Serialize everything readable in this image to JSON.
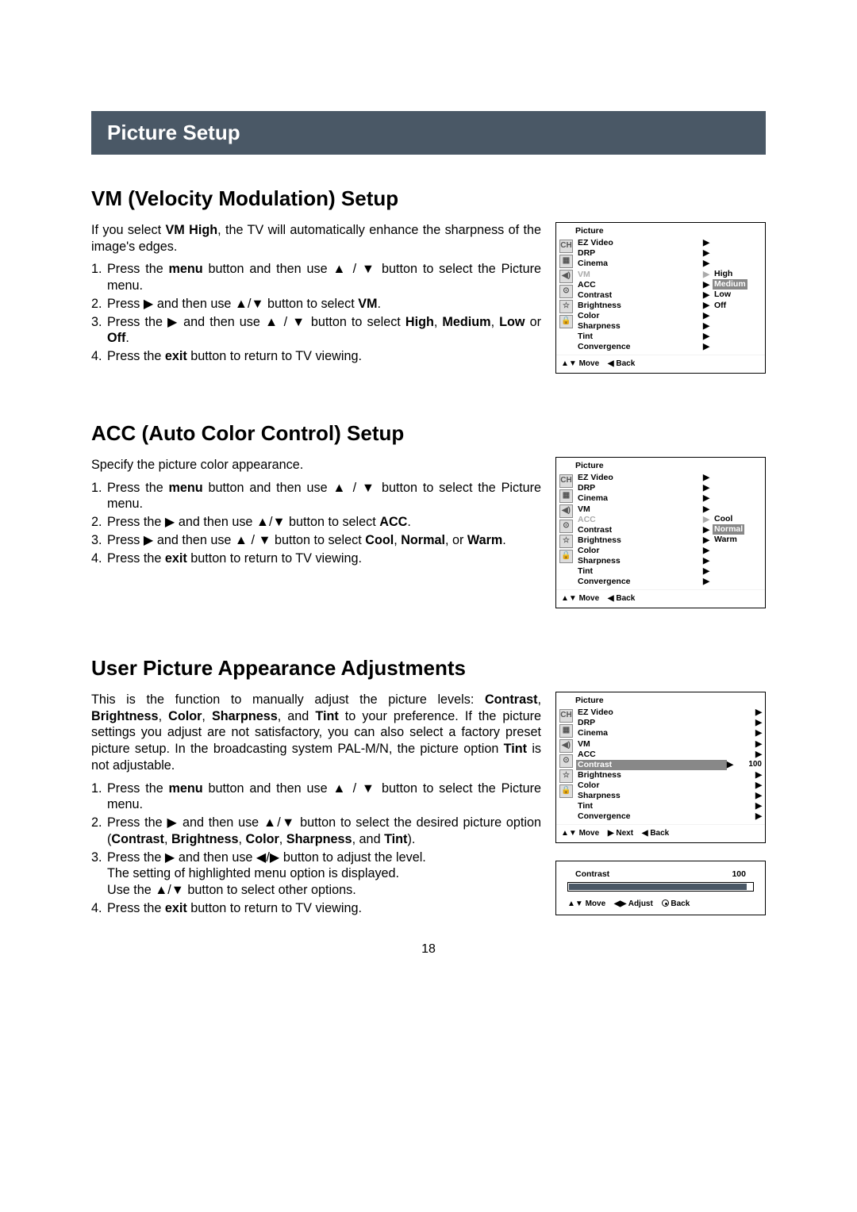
{
  "titleBar": "Picture  Setup",
  "pageNumber": "18",
  "glyphs": {
    "up": "▲",
    "down": "▼",
    "left": "◀",
    "right": "▶",
    "updown": "▲▼",
    "leftright": "◀▶",
    "tri": "▶",
    "backtri": "◀",
    "upsmall": "▴",
    "downsmall": "▾"
  },
  "sections": {
    "vm": {
      "heading": "VM (Velocity Modulation) Setup",
      "intro_a": "If you select ",
      "intro_bold": "VM High",
      "intro_b": ", the TV will automatically enhance the sharpness of the image's edges.",
      "step1a": "Press the ",
      "step1b": "menu",
      "step1c": " button and then use ▲ / ▼ button to select the Picture menu.",
      "step2a": "Press ▶ and then use ▲/▼ button to select ",
      "step2b": "VM",
      "step2c": ".",
      "step3a": "Press the ▶ and then use ▲ / ▼ button to select ",
      "step3b": "High",
      "step3c": ", ",
      "step3d": "Medium",
      "step3e": ", ",
      "step3f": "Low",
      "step3g": " or ",
      "step3h": "Off",
      "step3i": ".",
      "step4a": "Press the ",
      "step4b": "exit",
      "step4c": " button to return to TV viewing."
    },
    "acc": {
      "heading": "ACC (Auto Color Control) Setup",
      "intro": "Specify the picture color appearance.",
      "step1a": "Press the ",
      "step1b": "menu",
      "step1c": " button and then use ▲ / ▼ button to select the Picture menu.",
      "step2a": "Press the ▶ and then use ▲/▼ button to select ",
      "step2b": "ACC",
      "step2c": ".",
      "step3a": "Press ▶ and then use ▲ / ▼ button to select ",
      "step3b": "Cool",
      "step3c": ", ",
      "step3d": "Normal",
      "step3e": ", or ",
      "step3f": "Warm",
      "step3g": ".",
      "step4a": "Press the ",
      "step4b": "exit",
      "step4c": " button to return to TV viewing."
    },
    "user": {
      "heading": "User Picture Appearance Adjustments",
      "introA": "This is the function to manually adjust the picture levels: ",
      "i1": "Contrast",
      "c1": ", ",
      "i2": "Brightness",
      "c2": ", ",
      "i3": "Color",
      "c3": ", ",
      "i4": "Sharpness",
      "c4": ", and ",
      "i5": "Tint",
      "introB": " to your preference. If the picture settings you adjust are not satisfactory, you can also select a factory preset picture setup. In the broadcasting system PAL-M/N, the picture option ",
      "i6": "Tint",
      "introC": " is not adjustable.",
      "step1a": "Press the ",
      "step1b": "menu",
      "step1c": " button and then use ▲ / ▼ button to select the Picture menu.",
      "step2a": "Press the ▶ and then use ▲/▼ button to select the desired picture option (",
      "s2o1": "Contrast",
      "s2c1": ", ",
      "s2o2": "Brightness",
      "s2c2": ", ",
      "s2o3": "Color",
      "s2c3": ", ",
      "s2o4": "Sharpness",
      "s2c4": ", and ",
      "s2o5": "Tint",
      "s2end": ").",
      "step3": "Press the ▶ and then use ◀/▶ button to adjust the level.",
      "step3b": "The setting of highlighted menu option is displayed.",
      "step3c": "Use the ▲/▼ button to select other options.",
      "step4a": "Press the ",
      "step4b": "exit",
      "step4c": " button to return to TV viewing."
    }
  },
  "osd": {
    "title": "Picture",
    "items": [
      "EZ Video",
      "DRP",
      "Cinema",
      "VM",
      "ACC",
      "Contrast",
      "Brightness",
      "Color",
      "Sharpness",
      "Tint",
      "Convergence"
    ],
    "foot_move": "Move",
    "foot_back": "Back",
    "foot_next": "Next",
    "foot_adjust": "Adjust",
    "icons": [
      "CH",
      "▦",
      "◀)",
      "⊙",
      "☆",
      "🔒"
    ]
  },
  "osd_vm": {
    "dimIndex": 3,
    "sub": [
      "High",
      "Medium",
      "Low",
      "Off"
    ],
    "subHighlight": 1
  },
  "osd_acc": {
    "dimIndex": 4,
    "sub": [
      "Cool",
      "Normal",
      "Warm"
    ],
    "subHighlight": 1
  },
  "osd_user": {
    "hlIndex": 5,
    "hlValue": "100"
  },
  "slider": {
    "label": "Contrast",
    "value": "100",
    "fillPct": 96
  }
}
